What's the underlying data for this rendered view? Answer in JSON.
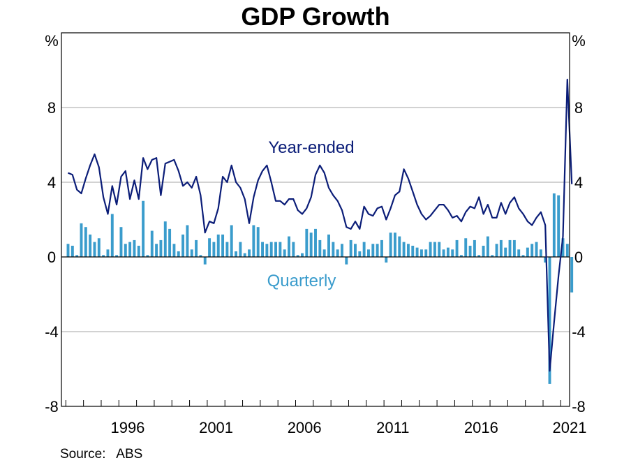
{
  "chart_data": {
    "type": "bar+line",
    "title": "GDP Growth",
    "y_unit_left": "%",
    "y_unit_right": "%",
    "ylim": [
      -8,
      12
    ],
    "y_ticks": [
      -8,
      -4,
      0,
      4,
      8
    ],
    "y_tick_labels": [
      "-8",
      "-4",
      "0",
      "4",
      "8"
    ],
    "xlim": [
      1992.75,
      2021.5
    ],
    "x_ticks": [
      1996,
      2001,
      2006,
      2011,
      2016,
      2021
    ],
    "x_tick_labels": [
      "1996",
      "2001",
      "2006",
      "2011",
      "2016",
      "2021"
    ],
    "grid": "horizontal",
    "colors": {
      "year_ended": "#0b1d78",
      "quarterly": "#3a9ccc",
      "grid": "#a6a6a6",
      "zero_line": "#000000"
    },
    "series": [
      {
        "name": "Year-ended",
        "kind": "line",
        "start_year": 1993,
        "step_quarters": 1,
        "values": [
          4.5,
          4.4,
          3.6,
          3.4,
          4.2,
          4.9,
          5.5,
          4.8,
          3.2,
          2.3,
          3.8,
          2.8,
          4.3,
          4.6,
          3.1,
          4.1,
          3.1,
          5.3,
          4.7,
          5.2,
          5.3,
          3.3,
          5.0,
          5.1,
          5.2,
          4.6,
          3.8,
          4.0,
          3.7,
          4.3,
          3.3,
          1.3,
          1.9,
          1.8,
          2.6,
          4.3,
          4.0,
          4.9,
          4.0,
          3.7,
          3.1,
          1.8,
          3.2,
          4.1,
          4.6,
          4.9,
          4.0,
          3.0,
          3.0,
          2.8,
          3.1,
          3.1,
          2.5,
          2.3,
          2.6,
          3.2,
          4.4,
          4.9,
          4.5,
          3.7,
          3.3,
          3.0,
          2.5,
          1.6,
          1.5,
          1.9,
          1.5,
          2.7,
          2.3,
          2.2,
          2.6,
          2.7,
          2.0,
          2.6,
          3.3,
          3.5,
          4.7,
          4.2,
          3.5,
          2.8,
          2.3,
          2.0,
          2.2,
          2.5,
          2.8,
          2.8,
          2.5,
          2.1,
          2.2,
          1.9,
          2.4,
          2.7,
          2.6,
          3.2,
          2.3,
          2.8,
          2.1,
          2.1,
          2.9,
          2.3,
          2.9,
          3.2,
          2.6,
          2.3,
          1.9,
          1.7,
          2.1,
          2.4,
          1.7,
          -6.1,
          -3.5,
          -1.0,
          1.1,
          9.5,
          3.9
        ]
      },
      {
        "name": "Quarterly",
        "kind": "bar",
        "start_year": 1993,
        "step_quarters": 1,
        "values": [
          0.7,
          0.6,
          0.1,
          1.8,
          1.6,
          1.2,
          0.8,
          1.0,
          0.1,
          0.4,
          2.3,
          0.1,
          1.6,
          0.7,
          0.8,
          0.9,
          0.6,
          3.0,
          0.1,
          1.4,
          0.7,
          0.9,
          1.9,
          1.5,
          0.7,
          0.3,
          1.2,
          1.7,
          0.4,
          0.9,
          0.1,
          -0.4,
          1.0,
          0.8,
          1.2,
          1.2,
          0.8,
          1.7,
          0.3,
          0.8,
          0.2,
          0.4,
          1.7,
          1.6,
          0.8,
          0.7,
          0.8,
          0.8,
          0.8,
          0.4,
          1.1,
          0.8,
          0.1,
          0.2,
          1.5,
          1.3,
          1.5,
          0.9,
          0.4,
          1.2,
          0.8,
          0.4,
          0.7,
          -0.4,
          0.9,
          0.7,
          0.3,
          0.8,
          0.4,
          0.7,
          0.7,
          0.9,
          -0.3,
          1.3,
          1.3,
          1.1,
          0.8,
          0.7,
          0.6,
          0.5,
          0.4,
          0.4,
          0.8,
          0.8,
          0.8,
          0.4,
          0.5,
          0.4,
          0.9,
          0.1,
          1.0,
          0.6,
          0.9,
          0.1,
          0.6,
          1.1,
          0.1,
          0.7,
          0.9,
          0.5,
          0.9,
          0.9,
          0.4,
          0.1,
          0.5,
          0.7,
          0.8,
          0.4,
          -0.3,
          -6.8,
          3.4,
          3.3,
          1.0,
          0.7,
          -1.9
        ]
      }
    ],
    "annotations": [
      {
        "text": "Year-ended",
        "series": "Year-ended"
      },
      {
        "text": "Quarterly",
        "series": "Quarterly"
      }
    ],
    "source": "Source:   ABS"
  }
}
